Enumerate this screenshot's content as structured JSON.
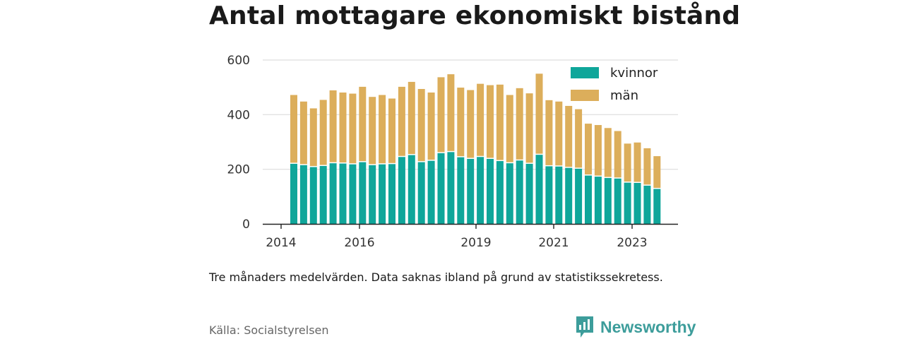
{
  "title": "Antal mottagare ekonomiskt bistånd",
  "note": "Tre månaders medelvärden. Data saknas ibland på grund av statistikssekretess.",
  "source": "Källa: Socialstyrelsen",
  "brand": {
    "name": "Newsworthy",
    "icon": "newsworthy-logo-icon",
    "color": "#3d9d9b"
  },
  "colors": {
    "kvinnor": "#0fa69a",
    "man": "#dcae5b",
    "axis": "#222222",
    "grid": "#dddddd"
  },
  "chart_data": {
    "type": "bar",
    "stacked": true,
    "x_start": "2014-03",
    "x_step_months": 3,
    "x_ticks": [
      "2014",
      "2016",
      "2019",
      "2021",
      "2023"
    ],
    "y_ticks": [
      "0",
      "200",
      "400",
      "600"
    ],
    "ylim": [
      0,
      600
    ],
    "grid": true,
    "legend_position": "top-right",
    "series": [
      {
        "name": "kvinnor",
        "color": "#0fa69a",
        "values": [
          220,
          215,
          208,
          212,
          222,
          221,
          218,
          226,
          215,
          218,
          219,
          245,
          252,
          226,
          231,
          259,
          263,
          244,
          238,
          245,
          238,
          230,
          222,
          232,
          220,
          253,
          211,
          210,
          205,
          202,
          177,
          173,
          168,
          166,
          151,
          150,
          140,
          128
        ]
      },
      {
        "name": "män",
        "color": "#dcae5b",
        "values": [
          252,
          233,
          215,
          242,
          267,
          260,
          259,
          276,
          250,
          254,
          240,
          257,
          268,
          268,
          250,
          278,
          285,
          255,
          252,
          268,
          270,
          280,
          250,
          265,
          258,
          297,
          242,
          238,
          227,
          218,
          190,
          189,
          183,
          174,
          143,
          148,
          137,
          120
        ]
      }
    ]
  }
}
